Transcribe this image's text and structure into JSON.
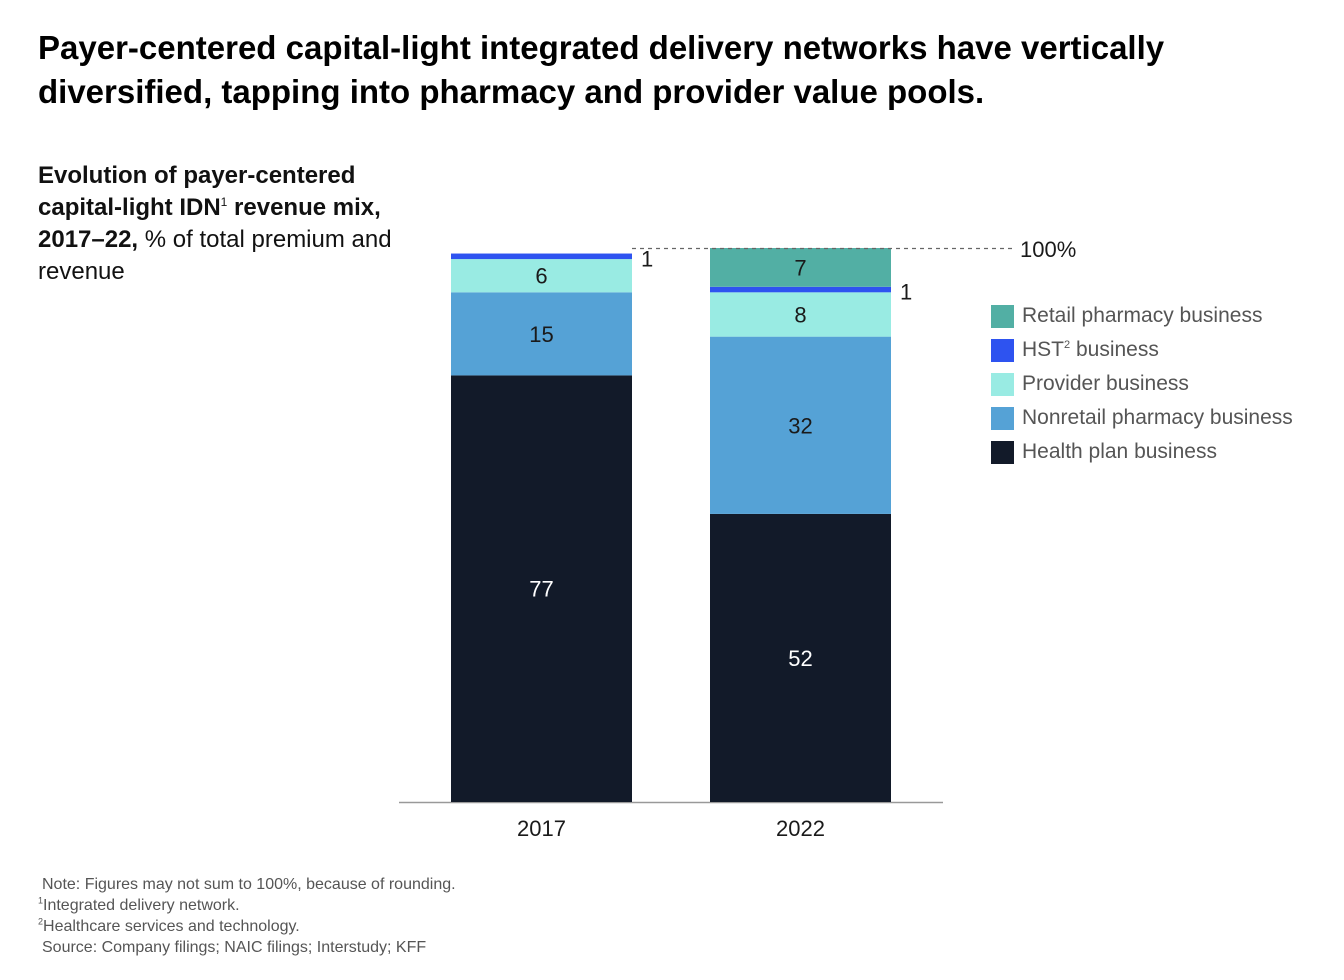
{
  "headline": "Payer-centered capital-light integrated delivery networks have vertically diversified, tapping into pharmacy and provider value pools.",
  "subtitle": {
    "bold_part1": "Evolution of payer-centered capital-light IDN",
    "sup": "1",
    "bold_part2": " revenue mix, 2017–22,",
    "normal": " % of total premium and revenue"
  },
  "legend": [
    {
      "label": "Retail pharmacy business",
      "color": "#52AFA4"
    },
    {
      "label": "HST",
      "sup": "2",
      "label_suffix": " business",
      "color": "#2E53F0"
    },
    {
      "label": "Provider business",
      "color": "#99EBE3"
    },
    {
      "label": "Nonretail pharmacy business",
      "color": "#55A2D6"
    },
    {
      "label": "Health plan business",
      "color": "#121A29"
    }
  ],
  "notes": {
    "note": "Note: Figures may not sum to 100%, because of rounding.",
    "fn1_sup": "1",
    "fn1": "Integrated delivery network.",
    "fn2_sup": "2",
    "fn2": "Healthcare services and technology.",
    "source": "Source: Company filings; NAIC filings; Interstudy; KFF"
  },
  "chart_data": {
    "type": "bar",
    "stacked": true,
    "categories": [
      "2017",
      "2022"
    ],
    "series": [
      {
        "name": "Health plan business",
        "values": [
          77,
          52
        ],
        "color": "#121A29"
      },
      {
        "name": "Nonretail pharmacy business",
        "values": [
          15,
          32
        ],
        "color": "#55A2D6"
      },
      {
        "name": "Provider business",
        "values": [
          6,
          8
        ],
        "color": "#99EBE3"
      },
      {
        "name": "HST business",
        "values": [
          1,
          1
        ],
        "color": "#2E53F0"
      },
      {
        "name": "Retail pharmacy business",
        "values": [
          0,
          7
        ],
        "color": "#52AFA4"
      }
    ],
    "reference_line": {
      "value": 100,
      "label": "100%"
    },
    "ylim": [
      0,
      100
    ],
    "legend_position": "right"
  }
}
